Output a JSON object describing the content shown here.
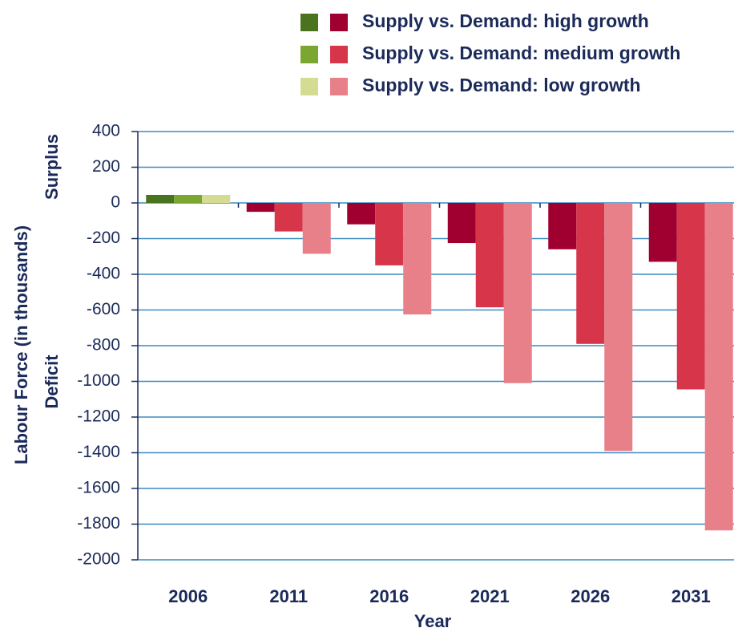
{
  "chart_data": {
    "type": "bar",
    "x_label": "Year",
    "y_label": "Labour Force (in thousands)",
    "y_annotations": [
      "Surplus",
      "Deficit"
    ],
    "categories": [
      "2006",
      "2011",
      "2016",
      "2021",
      "2026",
      "2031"
    ],
    "series": [
      {
        "name": "Supply vs. Demand: high growth",
        "color": "#a0002f",
        "point_colors": [
          "#4a7320",
          "#a0002f",
          "#a0002f",
          "#a0002f",
          "#a0002f",
          "#a0002f"
        ],
        "values": [
          45,
          -50,
          -120,
          -225,
          -260,
          -330
        ]
      },
      {
        "name": "Supply vs. Demand: medium growth",
        "color": "#d7354a",
        "point_colors": [
          "#7aa631",
          "#d7354a",
          "#d7354a",
          "#d7354a",
          "#d7354a",
          "#d7354a"
        ],
        "values": [
          45,
          -160,
          -350,
          -585,
          -790,
          -1045
        ]
      },
      {
        "name": "Supply vs. Demand: low growth",
        "color": "#e8808a",
        "point_colors": [
          "#d4dc94",
          "#e8808a",
          "#e8808a",
          "#e8808a",
          "#e8808a",
          "#e8808a"
        ],
        "values": [
          45,
          -285,
          -625,
          -1010,
          -1390,
          -1835
        ]
      }
    ],
    "ylim": [
      -2000,
      400
    ],
    "yticks": [
      400,
      200,
      0,
      -200,
      -400,
      -600,
      -800,
      -1000,
      -1200,
      -1400,
      -1600,
      -1800,
      -2000
    ],
    "grid": true
  }
}
